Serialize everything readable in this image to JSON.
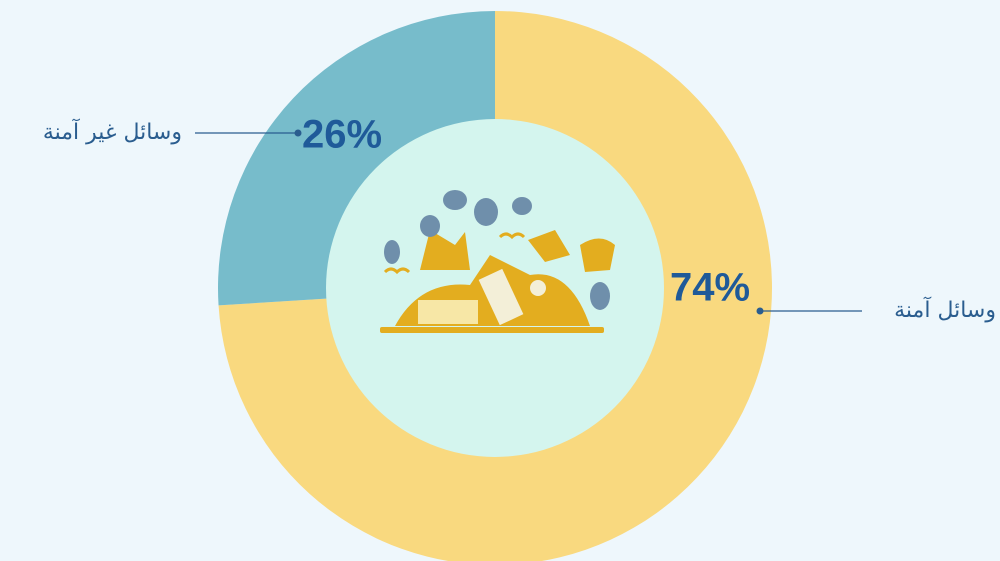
{
  "chart_data": {
    "type": "pie",
    "donut": true,
    "categories": [
      "وسائل آمنة",
      "وسائل غير آمنة"
    ],
    "values": [
      74,
      26
    ],
    "value_labels": [
      "74%",
      "26%"
    ],
    "colors": [
      "#f9d97f",
      "#77bccb"
    ]
  }
}
